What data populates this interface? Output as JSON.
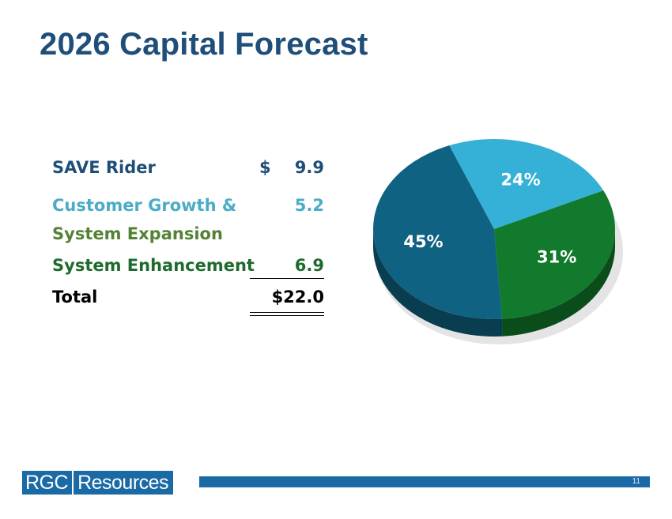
{
  "title": "2026 Capital Forecast",
  "table": {
    "rows": [
      {
        "label": "SAVE Rider",
        "dollar": "$",
        "value": "9.9",
        "color": "#1f4e79"
      },
      {
        "label": "Customer Growth &",
        "value": "5.2",
        "color": "#4bacc6"
      },
      {
        "label": "System Expansion",
        "color": "#4bacc6"
      },
      {
        "label": "System Enhancement",
        "value": "6.9",
        "color": "#1f6b2e"
      }
    ],
    "total": {
      "label": "Total",
      "value": "$22.0"
    }
  },
  "chart_data": {
    "type": "pie",
    "slices": [
      {
        "label": "24%",
        "value": 24,
        "color": "#35b1d8"
      },
      {
        "label": "31%",
        "value": 31,
        "color": "#127a2c"
      },
      {
        "label": "45%",
        "value": 45,
        "color": "#0f6281"
      }
    ],
    "style": "3d",
    "legend": "none"
  },
  "footer": {
    "logo_left": "RGC",
    "logo_right": "Resources",
    "page_number": "11",
    "bar_color": "#1a6aa6"
  }
}
